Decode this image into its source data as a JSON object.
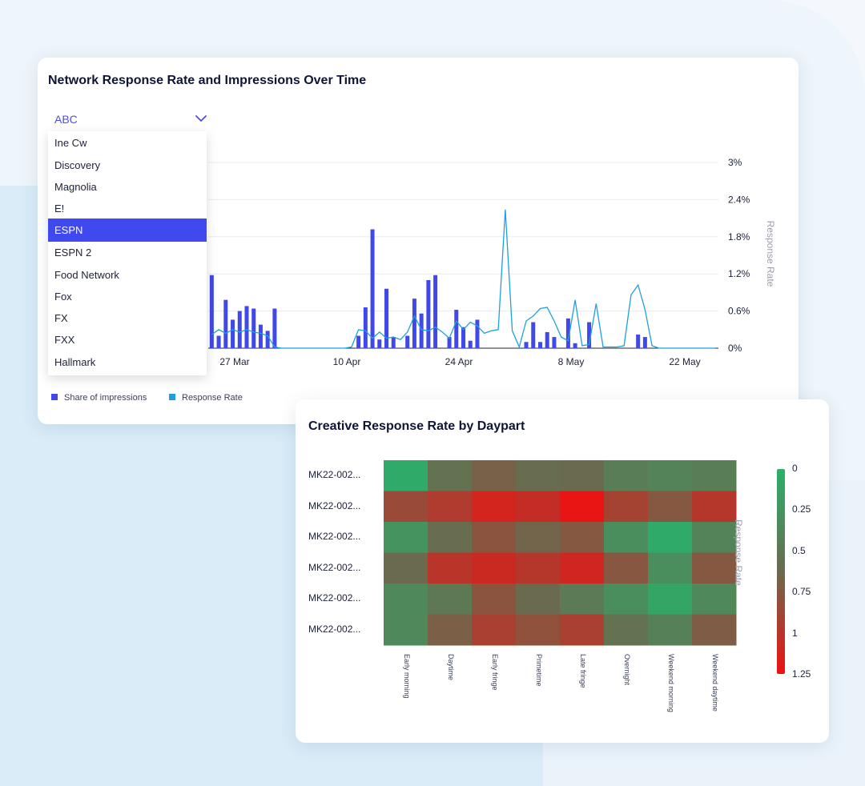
{
  "chart_data": [
    {
      "type": "bar",
      "title": "Network Response Rate and Impressions Over Time",
      "x_tick_labels": [
        "27 Mar",
        "10 Apr",
        "24 Apr",
        "8 May",
        "22 May"
      ],
      "y2_label": "Response Rate",
      "y2_ticks": [
        "3%",
        "2.4%",
        "1.8%",
        "1.2%",
        "0.6%",
        "0%"
      ],
      "y2_range": [
        0,
        3
      ],
      "grid": true,
      "legend_position": "bottom-left",
      "series": [
        {
          "name": "Share of impressions",
          "type": "bar",
          "color": "#4048e8",
          "values": [
            1.18,
            0.2,
            0.78,
            0.46,
            0.6,
            0.68,
            0.64,
            0.38,
            0.28,
            0.64,
            0,
            0,
            0,
            0,
            0,
            0,
            0,
            0,
            0,
            0,
            0,
            0.2,
            0.66,
            1.92,
            0.14,
            0.96,
            0.18,
            0,
            0.2,
            0.8,
            0.56,
            1.1,
            1.18,
            0,
            0.18,
            0.62,
            0.34,
            0.12,
            0.46,
            0,
            0,
            0,
            0,
            0,
            0,
            0.1,
            0.42,
            0.1,
            0.26,
            0.18,
            0,
            0.48,
            0.08,
            0,
            0.42,
            0,
            0,
            0,
            0,
            0,
            0,
            0.22,
            0.18,
            0,
            0,
            0,
            0,
            0,
            0,
            0,
            0,
            0,
            0
          ]
        },
        {
          "name": "Response Rate",
          "type": "line",
          "color": "#1ea0e0",
          "values": [
            0.22,
            0.3,
            0.24,
            0.3,
            0.26,
            0.3,
            0.26,
            0.24,
            0.2,
            0.02,
            0,
            0,
            0,
            0,
            0,
            0,
            0,
            0,
            0,
            0,
            0.02,
            0.3,
            0.28,
            0.16,
            0.26,
            0.16,
            0.18,
            0.14,
            0.26,
            0.52,
            0.3,
            0.28,
            0.34,
            0.26,
            0.16,
            0.44,
            0.3,
            0.42,
            0.36,
            0.24,
            0.28,
            0.3,
            2.24,
            0.28,
            0.02,
            0.44,
            0.52,
            0.64,
            0.66,
            0.44,
            0.18,
            0.12,
            0.78,
            0.04,
            0.06,
            0.72,
            0.02,
            0.02,
            0.02,
            0.04,
            0.86,
            1.02,
            0.62,
            0.04,
            0,
            0,
            0,
            0,
            0,
            0,
            0,
            0,
            0
          ]
        }
      ]
    },
    {
      "type": "heatmap",
      "title": "Creative Response Rate by Daypart",
      "rows": [
        "MK22-002...",
        "MK22-002...",
        "MK22-002...",
        "MK22-002...",
        "MK22-002...",
        "MK22-002..."
      ],
      "columns": [
        "Early morning",
        "Daytime",
        "Early fringe",
        "Primetime",
        "Late fringe",
        "Overnight",
        "Weekend morning",
        "Weekend daytime"
      ],
      "colorbar_label": "Response Rate",
      "colorbar_ticks": [
        "0",
        "0.25",
        "0.5",
        "0.75",
        "1",
        "1.25"
      ],
      "colorbar_range": [
        0,
        1.25
      ],
      "colors": {
        "low": "#2bb06a",
        "mid": "#6b6a4e",
        "high": "#ee1111"
      },
      "values": [
        [
          0.05,
          0.55,
          0.68,
          0.6,
          0.62,
          0.45,
          0.4,
          0.45
        ],
        [
          0.85,
          0.95,
          1.12,
          1.05,
          1.22,
          0.9,
          0.75,
          0.98
        ],
        [
          0.25,
          0.6,
          0.78,
          0.66,
          0.75,
          0.3,
          0.05,
          0.4
        ],
        [
          0.62,
          1.0,
          1.08,
          0.98,
          1.1,
          0.76,
          0.3,
          0.75
        ],
        [
          0.35,
          0.5,
          0.78,
          0.62,
          0.48,
          0.3,
          0.1,
          0.35
        ],
        [
          0.35,
          0.7,
          0.92,
          0.8,
          0.92,
          0.55,
          0.42,
          0.72
        ]
      ]
    }
  ],
  "dropdown": {
    "selected": "ABC",
    "items": [
      "Ine Cw",
      "Discovery",
      "Magnolia",
      "E!",
      "ESPN",
      "ESPN 2",
      "Food Network",
      "Fox",
      "FX",
      "FXX",
      "Hallmark"
    ],
    "highlighted_index": 4
  },
  "colors": {
    "accent": "#4048ef",
    "bar": "#4048e8",
    "line": "#1ea0e0"
  }
}
